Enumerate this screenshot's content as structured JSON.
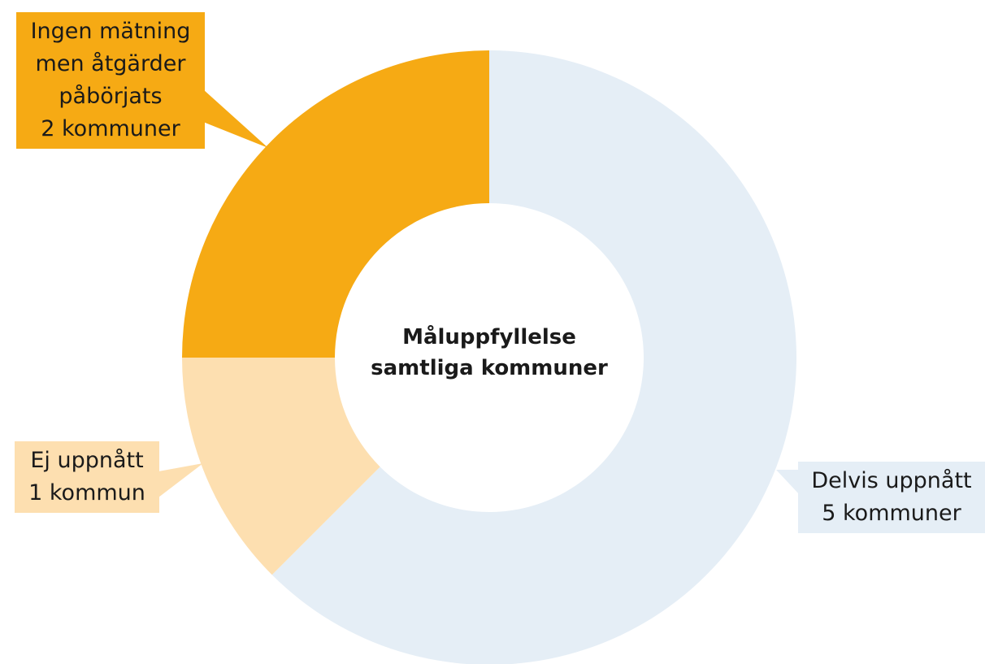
{
  "chart_data": {
    "type": "donut",
    "title": "Måluppfyllelse samtliga kommuner",
    "categories": [
      "Delvis uppnått",
      "Ej uppnått",
      "Ingen mätning men åtgärder påbörjats"
    ],
    "values": [
      5,
      1,
      2
    ],
    "value_labels": [
      "5 kommuner",
      "1 kommun",
      "2 kommuner"
    ],
    "colors": [
      "#e5eef6",
      "#fddfb0",
      "#f6aa14"
    ]
  }
}
